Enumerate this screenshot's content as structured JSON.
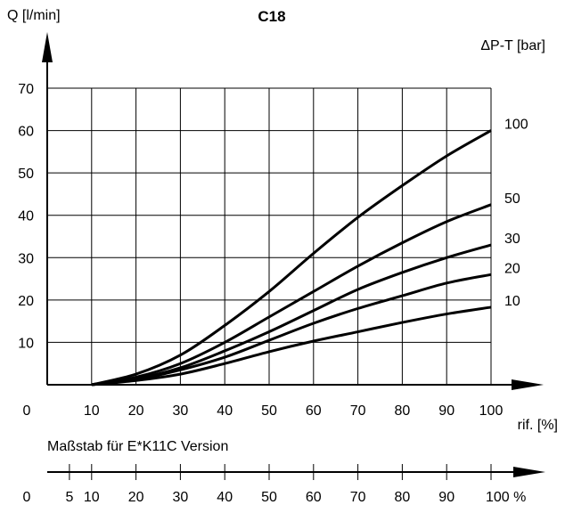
{
  "chart_data": {
    "type": "line",
    "title": "C18",
    "ylabel": "Q [l/min]",
    "xlabel": "rif. [%]",
    "legend_title": "ΔP-T [bar]",
    "xlim": [
      0,
      100
    ],
    "ylim": [
      0,
      70
    ],
    "x_ticks": [
      "0",
      "10",
      "20",
      "30",
      "40",
      "50",
      "60",
      "70",
      "80",
      "90",
      "100"
    ],
    "y_ticks": [
      "10",
      "20",
      "30",
      "40",
      "50",
      "60",
      "70"
    ],
    "grid": true,
    "series": [
      {
        "name": "100",
        "x": [
          10,
          20,
          30,
          40,
          50,
          60,
          70,
          80,
          90,
          100
        ],
        "y": [
          0,
          2.5,
          7,
          14,
          22,
          31,
          39.5,
          47,
          54,
          60
        ]
      },
      {
        "name": "50",
        "x": [
          10,
          20,
          30,
          40,
          50,
          60,
          70,
          80,
          90,
          100
        ],
        "y": [
          0,
          1.8,
          5,
          10,
          16,
          22,
          28,
          33.5,
          38.5,
          42.5
        ]
      },
      {
        "name": "30",
        "x": [
          10,
          20,
          30,
          40,
          50,
          60,
          70,
          80,
          90,
          100
        ],
        "y": [
          0,
          1.4,
          4,
          8,
          12.5,
          17.5,
          22.5,
          26.5,
          30,
          33
        ]
      },
      {
        "name": "20",
        "x": [
          10,
          20,
          30,
          40,
          50,
          60,
          70,
          80,
          90,
          100
        ],
        "y": [
          0,
          1.2,
          3.5,
          6.5,
          10.5,
          14.5,
          18,
          21,
          24,
          26
        ]
      },
      {
        "name": "10",
        "x": [
          10,
          20,
          30,
          40,
          50,
          60,
          70,
          80,
          90,
          100
        ],
        "y": [
          0,
          1,
          2.5,
          5,
          7.8,
          10.3,
          12.5,
          14.7,
          16.7,
          18.3
        ]
      }
    ],
    "secondary_axis": {
      "label": "Maßstab für E*K11C Version",
      "ticks": [
        "0",
        "5",
        "10",
        "20",
        "30",
        "40",
        "50",
        "60",
        "70",
        "80",
        "90",
        "100 %"
      ],
      "values": [
        0,
        5,
        10,
        20,
        30,
        40,
        50,
        60,
        70,
        80,
        90,
        100
      ]
    }
  }
}
